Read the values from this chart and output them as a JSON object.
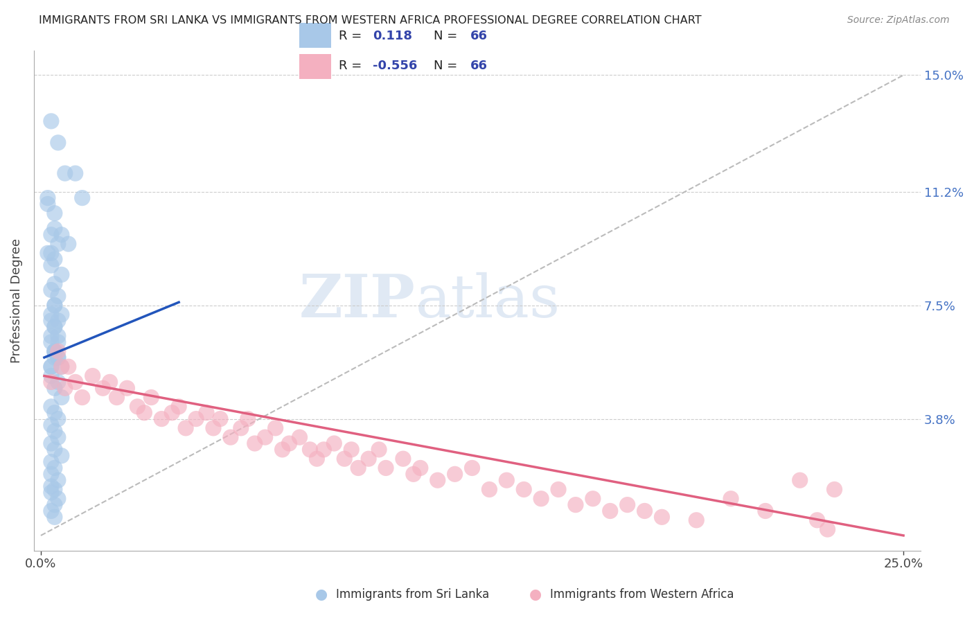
{
  "title": "IMMIGRANTS FROM SRI LANKA VS IMMIGRANTS FROM WESTERN AFRICA PROFESSIONAL DEGREE CORRELATION CHART",
  "source": "Source: ZipAtlas.com",
  "ylabel": "Professional Degree",
  "xlim": [
    -0.002,
    0.255
  ],
  "ylim": [
    -0.005,
    0.158
  ],
  "xtick_positions": [
    0.0,
    0.25
  ],
  "xtick_labels": [
    "0.0%",
    "25.0%"
  ],
  "ytick_positions": [
    0.038,
    0.075,
    0.112,
    0.15
  ],
  "ytick_labels": [
    "3.8%",
    "7.5%",
    "11.2%",
    "15.0%"
  ],
  "blue_color": "#a8c8e8",
  "pink_color": "#f4b0c0",
  "blue_line_color": "#2255bb",
  "pink_line_color": "#e06080",
  "gray_dash_color": "#bbbbbb",
  "watermark": "ZIP",
  "watermark2": "atlas",
  "footer_labels": [
    "Immigrants from Sri Lanka",
    "Immigrants from Western Africa"
  ],
  "blue_legend_color": "#a8c8e8",
  "pink_legend_color": "#f4b0c0",
  "legend_text_color": "#3344aa",
  "blue_R_text": "R =  0.118",
  "pink_R_text": "R = -0.556",
  "N_text": "N = 66",
  "blue_line_x": [
    0.001,
    0.04
  ],
  "blue_line_y": [
    0.058,
    0.076
  ],
  "pink_line_x": [
    0.001,
    0.25
  ],
  "pink_line_y": [
    0.052,
    0.0
  ],
  "blue_scatter_x": [
    0.003,
    0.005,
    0.007,
    0.01,
    0.012,
    0.002,
    0.004,
    0.006,
    0.008,
    0.003,
    0.002,
    0.004,
    0.003,
    0.005,
    0.002,
    0.004,
    0.003,
    0.006,
    0.004,
    0.003,
    0.005,
    0.004,
    0.003,
    0.005,
    0.004,
    0.003,
    0.005,
    0.004,
    0.006,
    0.003,
    0.004,
    0.005,
    0.003,
    0.004,
    0.005,
    0.003,
    0.004,
    0.005,
    0.003,
    0.004,
    0.006,
    0.004,
    0.003,
    0.005,
    0.004,
    0.006,
    0.003,
    0.004,
    0.005,
    0.003,
    0.004,
    0.005,
    0.003,
    0.004,
    0.006,
    0.003,
    0.004,
    0.003,
    0.005,
    0.003,
    0.004,
    0.003,
    0.005,
    0.004,
    0.003,
    0.004
  ],
  "blue_scatter_y": [
    0.135,
    0.128,
    0.118,
    0.118,
    0.11,
    0.108,
    0.1,
    0.098,
    0.095,
    0.092,
    0.11,
    0.105,
    0.098,
    0.095,
    0.092,
    0.09,
    0.088,
    0.085,
    0.082,
    0.08,
    0.078,
    0.075,
    0.072,
    0.07,
    0.068,
    0.065,
    0.063,
    0.075,
    0.072,
    0.07,
    0.068,
    0.065,
    0.063,
    0.06,
    0.058,
    0.055,
    0.06,
    0.058,
    0.055,
    0.06,
    0.055,
    0.058,
    0.052,
    0.05,
    0.048,
    0.045,
    0.042,
    0.04,
    0.038,
    0.036,
    0.034,
    0.032,
    0.03,
    0.028,
    0.026,
    0.024,
    0.022,
    0.02,
    0.018,
    0.016,
    0.015,
    0.014,
    0.012,
    0.01,
    0.008,
    0.006
  ],
  "pink_scatter_x": [
    0.003,
    0.005,
    0.006,
    0.007,
    0.008,
    0.01,
    0.012,
    0.015,
    0.018,
    0.02,
    0.022,
    0.025,
    0.028,
    0.03,
    0.032,
    0.035,
    0.038,
    0.04,
    0.042,
    0.045,
    0.048,
    0.05,
    0.052,
    0.055,
    0.058,
    0.06,
    0.062,
    0.065,
    0.068,
    0.07,
    0.072,
    0.075,
    0.078,
    0.08,
    0.082,
    0.085,
    0.088,
    0.09,
    0.092,
    0.095,
    0.098,
    0.1,
    0.105,
    0.108,
    0.11,
    0.115,
    0.12,
    0.125,
    0.13,
    0.135,
    0.14,
    0.145,
    0.15,
    0.155,
    0.16,
    0.165,
    0.17,
    0.175,
    0.18,
    0.19,
    0.2,
    0.21,
    0.22,
    0.225,
    0.228,
    0.23
  ],
  "pink_scatter_y": [
    0.05,
    0.06,
    0.055,
    0.048,
    0.055,
    0.05,
    0.045,
    0.052,
    0.048,
    0.05,
    0.045,
    0.048,
    0.042,
    0.04,
    0.045,
    0.038,
    0.04,
    0.042,
    0.035,
    0.038,
    0.04,
    0.035,
    0.038,
    0.032,
    0.035,
    0.038,
    0.03,
    0.032,
    0.035,
    0.028,
    0.03,
    0.032,
    0.028,
    0.025,
    0.028,
    0.03,
    0.025,
    0.028,
    0.022,
    0.025,
    0.028,
    0.022,
    0.025,
    0.02,
    0.022,
    0.018,
    0.02,
    0.022,
    0.015,
    0.018,
    0.015,
    0.012,
    0.015,
    0.01,
    0.012,
    0.008,
    0.01,
    0.008,
    0.006,
    0.005,
    0.012,
    0.008,
    0.018,
    0.005,
    0.002,
    0.015
  ]
}
